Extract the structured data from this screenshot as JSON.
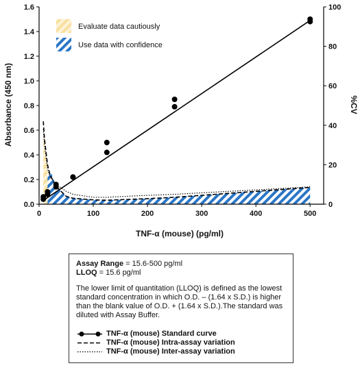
{
  "chart_data": {
    "type": "line",
    "xlabel": "TNF-α (mouse) (pg/ml)",
    "ylabel_left": "Absorbance (450 nm)",
    "ylabel_right": "%CV",
    "xlim": [
      0,
      525
    ],
    "ylim_left": [
      0,
      1.6
    ],
    "ylim_right": [
      0,
      100
    ],
    "x_ticks": [
      0,
      100,
      200,
      300,
      400,
      500
    ],
    "y_left_ticks": [
      "0.0",
      "0.2",
      "0.4",
      "0.6",
      "0.8",
      "1.0",
      "1.2",
      "1.4",
      "1.6"
    ],
    "y_right_ticks": [
      "0",
      "20",
      "40",
      "60",
      "80",
      "100"
    ],
    "standard_points": [
      {
        "x": 7.8,
        "y": 0.04
      },
      {
        "x": 7.8,
        "y": 0.06
      },
      {
        "x": 15.6,
        "y": 0.08
      },
      {
        "x": 15.6,
        "y": 0.1
      },
      {
        "x": 31.3,
        "y": 0.14
      },
      {
        "x": 31.3,
        "y": 0.16
      },
      {
        "x": 62.5,
        "y": 0.22
      },
      {
        "x": 62.5,
        "y": 0.22
      },
      {
        "x": 125,
        "y": 0.42
      },
      {
        "x": 125,
        "y": 0.5
      },
      {
        "x": 250,
        "y": 0.79
      },
      {
        "x": 250,
        "y": 0.85
      },
      {
        "x": 500,
        "y": 1.48
      },
      {
        "x": 500,
        "y": 1.5
      }
    ],
    "standard_fit": [
      {
        "x": 7.8,
        "y": 0.03
      },
      {
        "x": 500,
        "y": 1.49
      }
    ],
    "intra_cv": [
      {
        "x": 7.8,
        "y": 42
      },
      {
        "x": 10,
        "y": 33
      },
      {
        "x": 15.6,
        "y": 20
      },
      {
        "x": 20,
        "y": 15
      },
      {
        "x": 31.3,
        "y": 9
      },
      {
        "x": 50,
        "y": 4
      },
      {
        "x": 62.5,
        "y": 3
      },
      {
        "x": 100,
        "y": 2.2
      },
      {
        "x": 125,
        "y": 2
      },
      {
        "x": 200,
        "y": 2.8
      },
      {
        "x": 250,
        "y": 3.5
      },
      {
        "x": 350,
        "y": 5.5
      },
      {
        "x": 450,
        "y": 7.5
      },
      {
        "x": 500,
        "y": 8.5
      }
    ],
    "inter_cv": [
      {
        "x": 7.8,
        "y": 38
      },
      {
        "x": 10,
        "y": 30
      },
      {
        "x": 15.6,
        "y": 18
      },
      {
        "x": 20,
        "y": 14
      },
      {
        "x": 31.3,
        "y": 10
      },
      {
        "x": 50,
        "y": 6.5
      },
      {
        "x": 62.5,
        "y": 5
      },
      {
        "x": 100,
        "y": 3.5
      },
      {
        "x": 125,
        "y": 3.5
      },
      {
        "x": 200,
        "y": 4.5
      },
      {
        "x": 250,
        "y": 5
      },
      {
        "x": 350,
        "y": 6.5
      },
      {
        "x": 450,
        "y": 8
      },
      {
        "x": 500,
        "y": 8.8
      }
    ],
    "caution_limit_x": 15.6,
    "confidence_band_outline": [
      {
        "x": 15.6,
        "y": 0
      },
      {
        "x": 15.6,
        "y": 14
      },
      {
        "x": 20,
        "y": 17
      },
      {
        "x": 25,
        "y": 14
      },
      {
        "x": 31.3,
        "y": 9
      },
      {
        "x": 50,
        "y": 4
      },
      {
        "x": 62.5,
        "y": 3
      },
      {
        "x": 100,
        "y": 2.2
      },
      {
        "x": 125,
        "y": 2
      },
      {
        "x": 200,
        "y": 2.8
      },
      {
        "x": 250,
        "y": 3.5
      },
      {
        "x": 350,
        "y": 5.5
      },
      {
        "x": 450,
        "y": 7.5
      },
      {
        "x": 500,
        "y": 8.5
      },
      {
        "x": 500,
        "y": 0
      }
    ],
    "legend": {
      "placement": "top-left",
      "caution_label": "Evaluate data cautiously",
      "confidence_label": "Use data with confidence"
    },
    "colors": {
      "caution_a": "#f8dfa0",
      "caution_b": "#fdf3d6",
      "confidence_a": "#2a76c6",
      "confidence_b": "#ffffff",
      "line": "#000000"
    }
  },
  "info_box": {
    "assay_range_label": "Assay Range",
    "assay_range_value": " = 15.6-500 pg/ml",
    "lloq_label": "LLOQ",
    "lloq_value": " =  15.6 pg/ml",
    "description": "The lower limit of quantitation (LLOQ) is defined as the lowest standard concentration in which O.D. – (1.64 x S.D.) is higher than the blank value of O.D. + (1.64 x S.D.).The standard was diluted with Assay Buffer.",
    "key_standard": "TNF-α (mouse) Standard curve",
    "key_intra": "TNF-α (mouse) Intra-assay variation",
    "key_inter": "TNF-α (mouse) Inter-assay variation"
  }
}
